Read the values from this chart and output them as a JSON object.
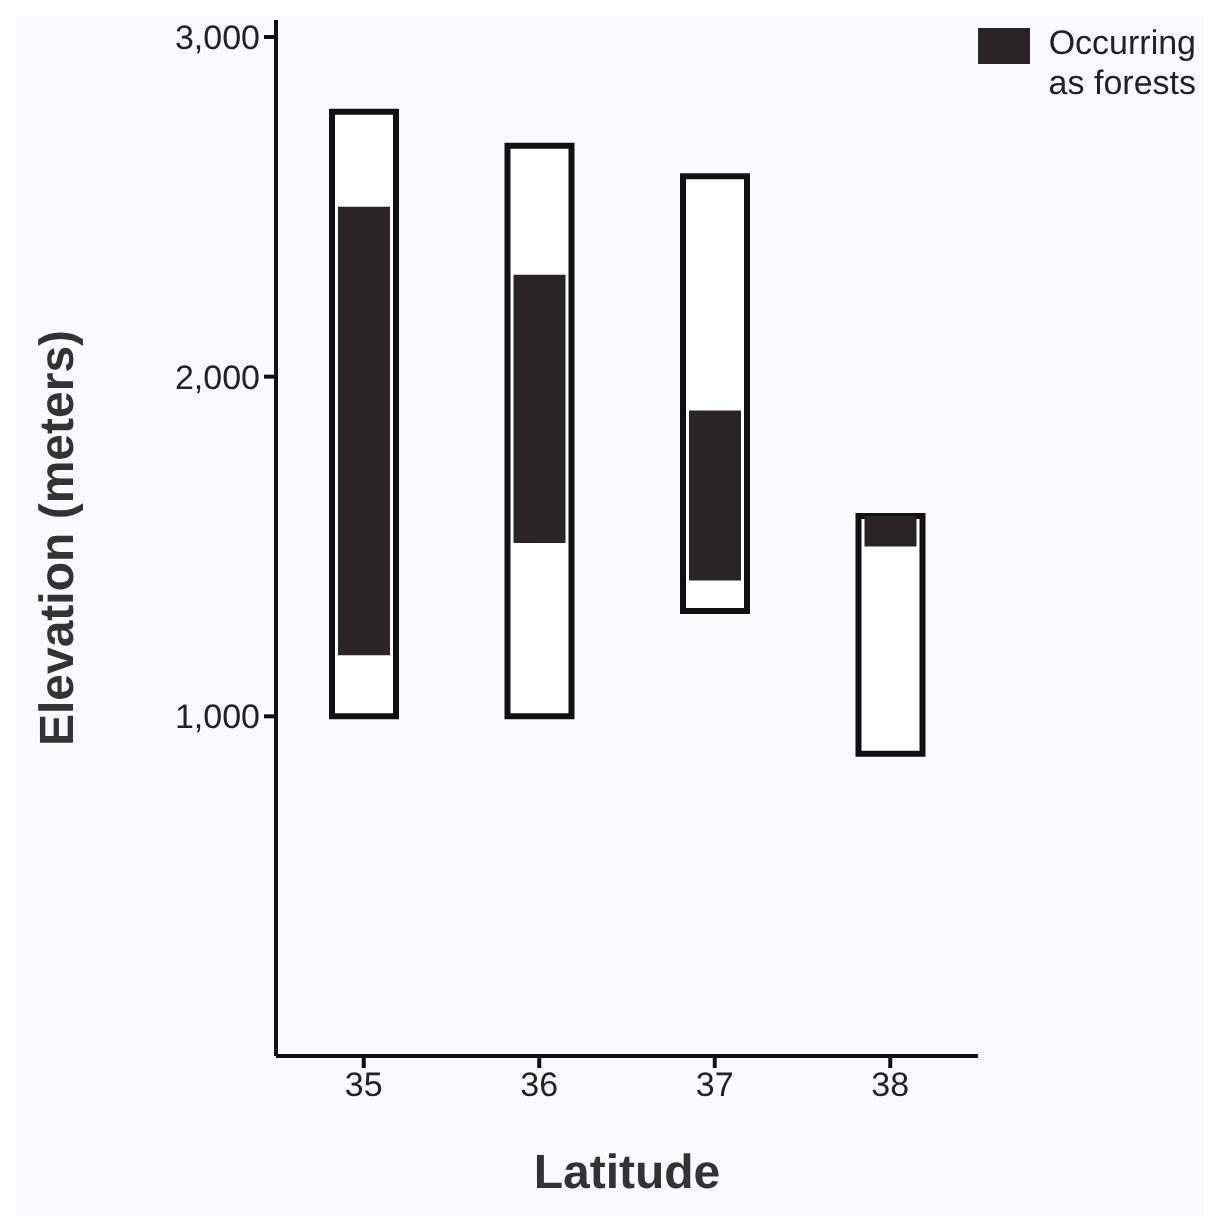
{
  "chart_data": {
    "type": "bar",
    "xlabel": "Latitude",
    "ylabel": "Elevation (meters)",
    "categories": [
      "35",
      "36",
      "37",
      "38"
    ],
    "series": [
      {
        "color": "#ffffff",
        "base": [
          1000,
          1000,
          1310,
          890
        ],
        "values": [
          1780,
          1680,
          1280,
          700
        ]
      },
      {
        "name": "Occurring as forests",
        "color": "#2b2426",
        "base": [
          1180,
          1510,
          1400,
          1500
        ],
        "values": [
          1320,
          790,
          500,
          90
        ]
      }
    ],
    "ylim": [
      0,
      3050
    ],
    "yticks": [
      {
        "value": 1000,
        "label": "1,000"
      },
      {
        "value": 2000,
        "label": "2,000"
      },
      {
        "value": 3000,
        "label": "3,000"
      }
    ],
    "grid": false,
    "legend": "top right"
  }
}
